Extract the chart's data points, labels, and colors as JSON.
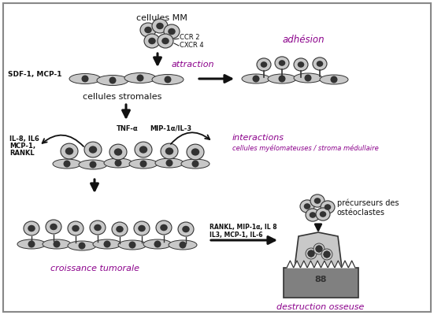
{
  "bg_color": "#ffffff",
  "border_color": "#888888",
  "purple_color": "#8B008B",
  "black": "#111111",
  "gray_light": "#b0b0b0",
  "gray_mid": "#808080",
  "gray_dark": "#333333",
  "gray_cell": "#c8c8c8",
  "label_cellules_MM": "cellules MM",
  "label_CCR2": "CCR 2",
  "label_CXCR4": "CXCR 4",
  "label_SDF1": "SDF-1, MCP-1",
  "label_attraction": "attraction",
  "label_adhesion": "adhésion",
  "label_stromales": "cellules stromales",
  "label_left_cy1": "IL-8, IL6",
  "label_left_cy2": "MCP-1,",
  "label_left_cy3": "RANKL",
  "label_TNFa": "TNF-α",
  "label_MIP1a": "MIP-1α/IL-3",
  "label_interactions1": "interactions",
  "label_interactions2": "cellules myélomateuses / stroma médullaire",
  "label_RANKL2": "RANKL, MIP-1α, IL 8",
  "label_IL3": "IL3, MCP-1, IL-6",
  "label_croissance": "croissance tumorale",
  "label_precurseurs1": "précurseurs des",
  "label_precurseurs2": "ostéoclastes",
  "label_destruction": "destruction osseuse"
}
